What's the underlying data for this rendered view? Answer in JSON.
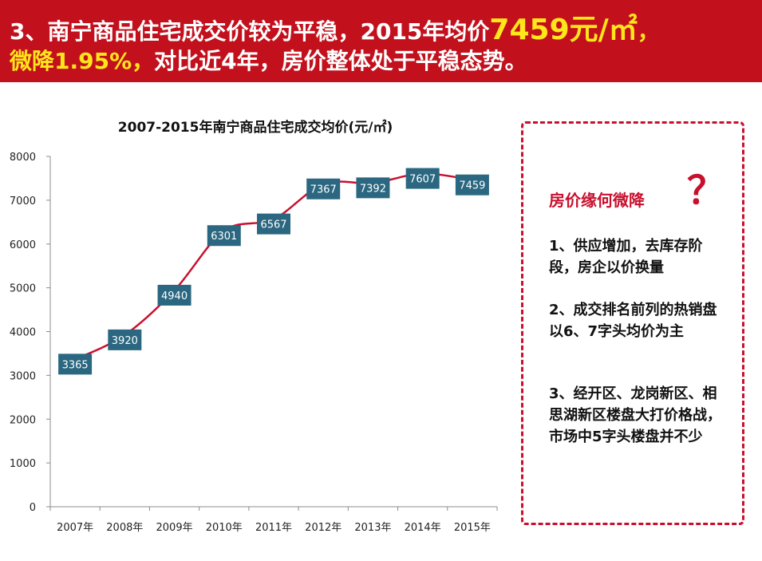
{
  "banner": {
    "line1": {
      "part1": "3、南宁商品住宅成交价较为平稳，2015年均价",
      "highlight": "7459元/㎡",
      "part2": "，"
    },
    "line2": {
      "highlight": "微降1.95%，",
      "part2": "对比近4年，房价整体处于平稳态势。"
    },
    "bg_color": "#c2111d",
    "highlight_color": "#ffe61a"
  },
  "chart_data": {
    "type": "line",
    "title": "2007-2015年南宁商品住宅成交均价(元/㎡)",
    "categories": [
      "2007年",
      "2008年",
      "2009年",
      "2010年",
      "2011年",
      "2012年",
      "2013年",
      "2014年",
      "2015年"
    ],
    "values": [
      3365,
      3920,
      4940,
      6301,
      6567,
      7367,
      7392,
      7607,
      7459
    ],
    "data_labels": [
      "3365",
      "3920",
      "4940",
      "6301",
      "6567",
      "7367",
      "7392",
      "7607",
      "7459"
    ],
    "ylim": [
      0,
      8000
    ],
    "yticks": [
      0,
      1000,
      2000,
      3000,
      4000,
      5000,
      6000,
      7000,
      8000
    ],
    "xlabel": "",
    "ylabel": "",
    "grid": false,
    "line_color": "#c8102e",
    "label_box_color": "#2b6780"
  },
  "reasons": {
    "title": "房价缘何微降",
    "qmark": "？",
    "items": [
      "1、供应增加，去库存阶段，房企以价换量",
      "2、成交排名前列的热销盘以6、7字头均价为主",
      "3、经开区、龙岗新区、相思湖新区楼盘大打价格战，市场中5字头楼盘并不少"
    ]
  }
}
